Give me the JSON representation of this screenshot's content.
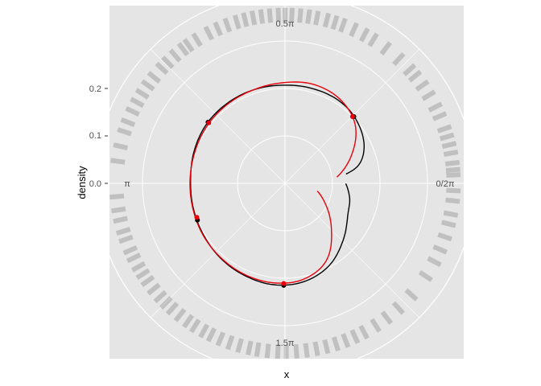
{
  "chart_data": {
    "type": "line",
    "coord": "polar",
    "xlabel": "x",
    "ylabel": "density",
    "angle_labels": [
      "0.5π",
      "π",
      "1.5π",
      "0/2π"
    ],
    "radial_ticks": [
      {
        "label": "0.0",
        "value": 0.0
      },
      {
        "label": "0.1",
        "value": 0.1
      },
      {
        "label": "0.2",
        "value": 0.2
      }
    ],
    "radial_range": [
      -0.1,
      0.3
    ],
    "rug_band": [
      0.24,
      0.27
    ],
    "grid": true,
    "colors": {
      "panel": "#e5e5e5",
      "grid": "#ffffff",
      "series_black": "#000000",
      "series_red": "#e8000b",
      "rug": "#000000"
    },
    "series": [
      {
        "color": "black",
        "points": [
          {
            "theta": 0.15,
            "r": 0.03
          },
          {
            "theta": 0.25,
            "r": 0.061
          },
          {
            "theta": 0.45,
            "r": 0.085
          },
          {
            "theta": 0.75,
            "r": 0.102
          },
          {
            "theta": 1.0,
            "r": 0.108
          },
          {
            "theta": 1.3,
            "r": 0.108
          },
          {
            "theta": 1.6,
            "r": 0.107
          },
          {
            "theta": 1.9,
            "r": 0.108
          },
          {
            "theta": 2.2,
            "r": 0.108
          },
          {
            "theta": 2.5,
            "r": 0.107
          },
          {
            "theta": 2.8,
            "r": 0.103
          },
          {
            "theta": 3.1,
            "r": 0.099
          },
          {
            "theta": 3.4,
            "r": 0.1
          },
          {
            "theta": 3.7,
            "r": 0.103
          },
          {
            "theta": 4.0,
            "r": 0.108
          },
          {
            "theta": 4.3,
            "r": 0.112
          },
          {
            "theta": 4.6,
            "r": 0.115
          },
          {
            "theta": 4.9,
            "r": 0.111
          },
          {
            "theta": 5.2,
            "r": 0.097
          },
          {
            "theta": 5.5,
            "r": 0.072
          },
          {
            "theta": 5.8,
            "r": 0.049
          },
          {
            "theta": 6.05,
            "r": 0.04
          },
          {
            "theta": 6.28,
            "r": 0.028
          }
        ],
        "markers": [
          {
            "theta": 0.77,
            "r": 0.102
          },
          {
            "theta": 2.47,
            "r": 0.107
          },
          {
            "theta": 3.54,
            "r": 0.1
          },
          {
            "theta": 4.7,
            "r": 0.115
          }
        ]
      },
      {
        "color": "red",
        "points": [
          {
            "theta": 0.12,
            "r": 0.01
          },
          {
            "theta": 0.4,
            "r": 0.052
          },
          {
            "theta": 0.7,
            "r": 0.093
          },
          {
            "theta": 1.0,
            "r": 0.112
          },
          {
            "theta": 1.3,
            "r": 0.117
          },
          {
            "theta": 1.6,
            "r": 0.112
          },
          {
            "theta": 1.9,
            "r": 0.108
          },
          {
            "theta": 2.2,
            "r": 0.106
          },
          {
            "theta": 2.5,
            "r": 0.104
          },
          {
            "theta": 2.8,
            "r": 0.101
          },
          {
            "theta": 3.1,
            "r": 0.1
          },
          {
            "theta": 3.4,
            "r": 0.101
          },
          {
            "theta": 3.7,
            "r": 0.104
          },
          {
            "theta": 4.0,
            "r": 0.107
          },
          {
            "theta": 4.3,
            "r": 0.11
          },
          {
            "theta": 4.6,
            "r": 0.111
          },
          {
            "theta": 4.9,
            "r": 0.106
          },
          {
            "theta": 5.2,
            "r": 0.085
          },
          {
            "theta": 5.5,
            "r": 0.038
          },
          {
            "theta": 5.8,
            "r": -0.003
          },
          {
            "theta": 6.05,
            "r": -0.03
          }
        ],
        "markers": [
          {
            "theta": 0.78,
            "r": 0.1
          },
          {
            "theta": 2.47,
            "r": 0.105
          },
          {
            "theta": 3.51,
            "r": 0.099
          },
          {
            "theta": 4.7,
            "r": 0.111
          }
        ]
      }
    ],
    "rug": [
      0.05,
      0.08,
      0.12,
      0.18,
      0.23,
      0.28,
      0.33,
      0.41,
      0.47,
      0.55,
      0.62,
      0.69,
      0.74,
      0.83,
      0.93,
      1.02,
      1.08,
      1.15,
      1.22,
      1.27,
      1.32,
      1.38,
      1.43,
      1.48,
      1.53,
      1.57,
      1.61,
      1.66,
      1.71,
      1.76,
      1.81,
      1.86,
      1.92,
      1.98,
      2.04,
      2.12,
      2.18,
      2.22,
      2.28,
      2.34,
      2.39,
      2.46,
      2.52,
      2.58,
      2.64,
      2.7,
      2.77,
      2.83,
      2.92,
      3.01,
      3.22,
      3.3,
      3.36,
      3.43,
      3.48,
      3.55,
      3.6,
      3.66,
      3.71,
      3.76,
      3.82,
      3.88,
      3.93,
      3.98,
      4.04,
      4.1,
      4.15,
      4.21,
      4.26,
      4.32,
      4.38,
      4.44,
      4.5,
      4.55,
      4.61,
      4.67,
      4.72,
      4.78,
      4.84,
      4.9,
      4.96,
      5.02,
      5.08,
      5.14,
      5.2,
      5.28,
      5.36,
      5.45,
      5.56,
      5.7,
      5.8,
      5.88,
      5.96,
      6.04,
      6.1,
      6.18,
      6.24
    ]
  }
}
